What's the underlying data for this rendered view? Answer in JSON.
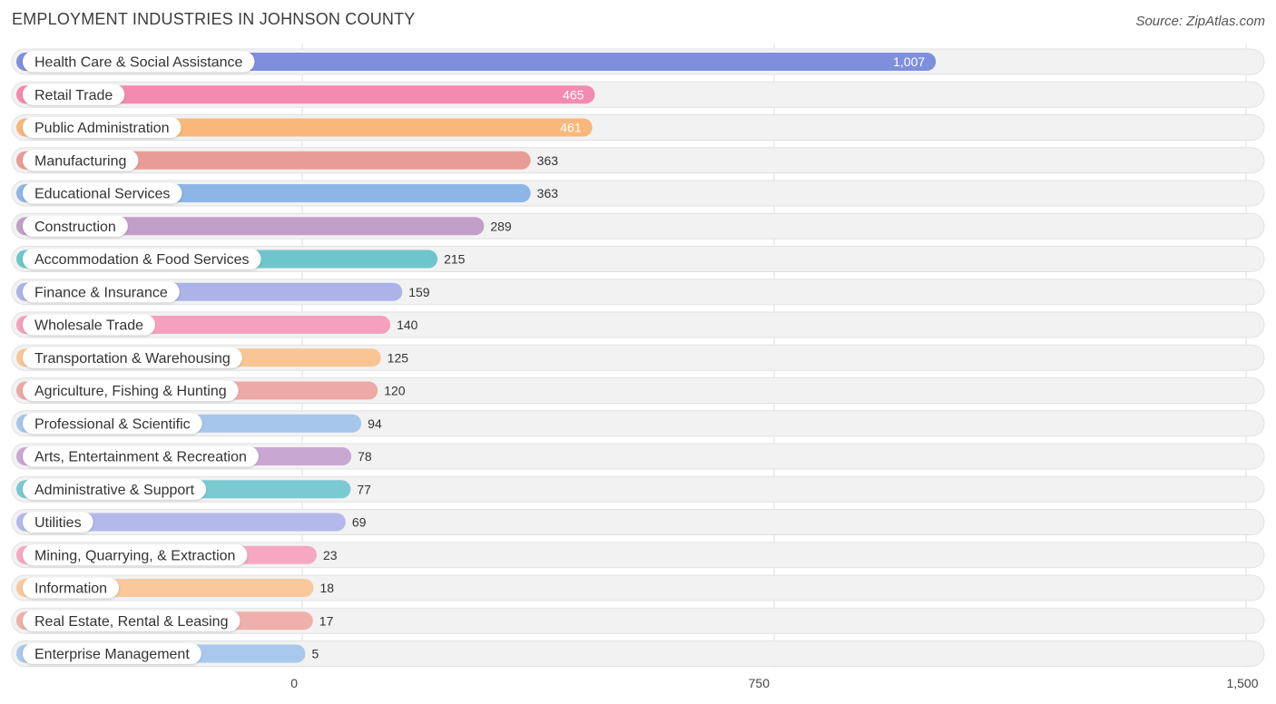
{
  "header": {
    "title": "EMPLOYMENT INDUSTRIES IN JOHNSON COUNTY",
    "source": "Source: ZipAtlas.com"
  },
  "chart_data": {
    "type": "bar",
    "orientation": "horizontal",
    "title": "EMPLOYMENT INDUSTRIES IN JOHNSON COUNTY",
    "xlabel": "",
    "ylabel": "",
    "xlim": [
      0,
      1500
    ],
    "ticks": [
      0,
      750,
      1500
    ],
    "tick_labels": [
      "0",
      "750",
      "1,500"
    ],
    "grid": true,
    "categories": [
      "Health Care & Social Assistance",
      "Retail Trade",
      "Public Administration",
      "Manufacturing",
      "Educational Services",
      "Construction",
      "Accommodation & Food Services",
      "Finance & Insurance",
      "Wholesale Trade",
      "Transportation & Warehousing",
      "Agriculture, Fishing & Hunting",
      "Professional & Scientific",
      "Arts, Entertainment & Recreation",
      "Administrative & Support",
      "Utilities",
      "Mining, Quarrying, & Extraction",
      "Information",
      "Real Estate, Rental & Leasing",
      "Enterprise Management"
    ],
    "values": [
      1007,
      465,
      461,
      363,
      363,
      289,
      215,
      159,
      140,
      125,
      120,
      94,
      78,
      77,
      69,
      23,
      18,
      17,
      5
    ],
    "value_labels": [
      "1,007",
      "465",
      "461",
      "363",
      "363",
      "289",
      "215",
      "159",
      "140",
      "125",
      "120",
      "94",
      "78",
      "77",
      "69",
      "23",
      "18",
      "17",
      "5"
    ],
    "colors": [
      "#7f8fdc",
      "#f48aaf",
      "#f9b77a",
      "#e99c97",
      "#8db6e6",
      "#c19fc8",
      "#6ec6cd",
      "#abb3e8",
      "#f6a0bf",
      "#f9c594",
      "#eda9a6",
      "#a6c6ec",
      "#c8a8d2",
      "#7ccad1",
      "#b4b9ec",
      "#f6a8c3",
      "#f9c99c",
      "#efb0ac",
      "#a9c8ee"
    ]
  }
}
